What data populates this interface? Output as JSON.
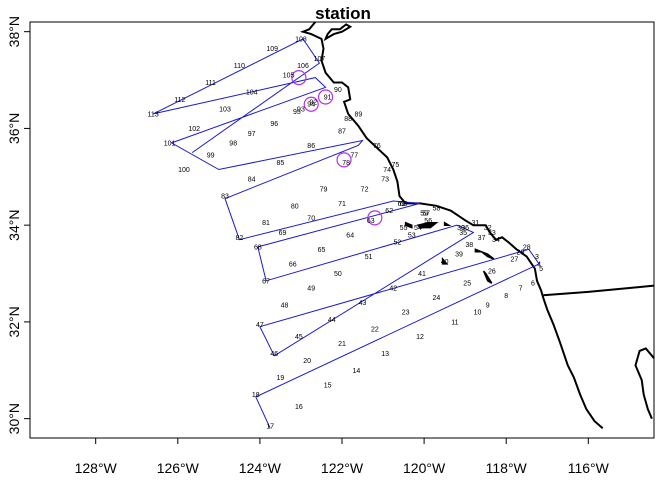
{
  "title": "station",
  "axes": {
    "x_ticks": [
      {
        "lon": -128,
        "label": "128°W"
      },
      {
        "lon": -126,
        "label": "126°W"
      },
      {
        "lon": -124,
        "label": "124°W"
      },
      {
        "lon": -122,
        "label": "122°W"
      },
      {
        "lon": -120,
        "label": "120°W"
      },
      {
        "lon": -118,
        "label": "118°W"
      },
      {
        "lon": -116,
        "label": "116°W"
      }
    ],
    "y_ticks": [
      {
        "lat": 30,
        "label": "30°N"
      },
      {
        "lat": 32,
        "label": "32°N"
      },
      {
        "lat": 34,
        "label": "34°N"
      },
      {
        "lat": 36,
        "label": "36°N"
      },
      {
        "lat": 38,
        "label": "38°N"
      }
    ],
    "xlim": [
      -129.6,
      -114.4
    ],
    "ylim": [
      29.6,
      38.2
    ]
  },
  "colors": {
    "route": "#1a1acd",
    "highlight": "#b333e6",
    "coast": "#000000"
  },
  "route_vertices": [
    {
      "lon": -123.75,
      "lat": 29.8
    },
    {
      "lon": -124.1,
      "lat": 30.45
    },
    {
      "lon": -117.2,
      "lat": 33.2
    },
    {
      "lon": -117.45,
      "lat": 33.5
    },
    {
      "lon": -124.0,
      "lat": 31.9
    },
    {
      "lon": -123.65,
      "lat": 31.3
    },
    {
      "lon": -118.8,
      "lat": 33.85
    },
    {
      "lon": -119.2,
      "lat": 34.0
    },
    {
      "lon": -123.85,
      "lat": 32.85
    },
    {
      "lon": -124.05,
      "lat": 33.55
    },
    {
      "lon": -120.1,
      "lat": 34.45
    },
    {
      "lon": -120.75,
      "lat": 34.5
    },
    {
      "lon": -124.5,
      "lat": 33.7
    },
    {
      "lon": -124.85,
      "lat": 34.55
    },
    {
      "lon": -121.6,
      "lat": 35.65
    },
    {
      "lon": -121.5,
      "lat": 35.75
    },
    {
      "lon": -125.0,
      "lat": 35.15
    },
    {
      "lon": -126.15,
      "lat": 35.7
    },
    {
      "lon": -122.4,
      "lat": 36.85
    },
    {
      "lon": -122.65,
      "lat": 37.05
    },
    {
      "lon": -126.6,
      "lat": 36.3
    },
    {
      "lon": -122.95,
      "lat": 37.85
    },
    {
      "lon": -122.55,
      "lat": 37.35
    },
    {
      "lon": -125.65,
      "lat": 35.5
    }
  ],
  "stations": [
    {
      "id": "17",
      "lon": -123.75,
      "lat": 29.85
    },
    {
      "id": "16",
      "lon": -123.05,
      "lat": 30.25
    },
    {
      "id": "15",
      "lon": -122.35,
      "lat": 30.7
    },
    {
      "id": "14",
      "lon": -121.65,
      "lat": 31.0
    },
    {
      "id": "13",
      "lon": -120.95,
      "lat": 31.35
    },
    {
      "id": "12",
      "lon": -120.1,
      "lat": 31.7
    },
    {
      "id": "11",
      "lon": -119.25,
      "lat": 32.0
    },
    {
      "id": "10",
      "lon": -118.7,
      "lat": 32.2
    },
    {
      "id": "9",
      "lon": -118.45,
      "lat": 32.35
    },
    {
      "id": "8",
      "lon": -118.0,
      "lat": 32.55
    },
    {
      "id": "7",
      "lon": -117.65,
      "lat": 32.7
    },
    {
      "id": "6",
      "lon": -117.35,
      "lat": 32.8
    },
    {
      "id": "5",
      "lon": -117.15,
      "lat": 33.1
    },
    {
      "id": "4",
      "lon": -117.2,
      "lat": 33.2
    },
    {
      "id": "3",
      "lon": -117.25,
      "lat": 33.35
    },
    {
      "id": "18",
      "lon": -124.1,
      "lat": 30.5
    },
    {
      "id": "19",
      "lon": -123.5,
      "lat": 30.85
    },
    {
      "id": "20",
      "lon": -122.85,
      "lat": 31.2
    },
    {
      "id": "21",
      "lon": -122.0,
      "lat": 31.55
    },
    {
      "id": "22",
      "lon": -121.2,
      "lat": 31.85
    },
    {
      "id": "23",
      "lon": -120.45,
      "lat": 32.2
    },
    {
      "id": "24",
      "lon": -119.7,
      "lat": 32.5
    },
    {
      "id": "25",
      "lon": -118.95,
      "lat": 32.8
    },
    {
      "id": "26",
      "lon": -118.35,
      "lat": 33.05
    },
    {
      "id": "27",
      "lon": -117.8,
      "lat": 33.3
    },
    {
      "id": "28",
      "lon": -117.5,
      "lat": 33.55
    },
    {
      "id": "29",
      "lon": -117.65,
      "lat": 33.45
    },
    {
      "id": "46",
      "lon": -123.65,
      "lat": 31.35
    },
    {
      "id": "45",
      "lon": -123.05,
      "lat": 31.7
    },
    {
      "id": "44",
      "lon": -122.25,
      "lat": 32.05
    },
    {
      "id": "43",
      "lon": -121.5,
      "lat": 32.4
    },
    {
      "id": "42",
      "lon": -120.75,
      "lat": 32.7
    },
    {
      "id": "41",
      "lon": -120.05,
      "lat": 33.0
    },
    {
      "id": "40",
      "lon": -119.5,
      "lat": 33.25
    },
    {
      "id": "39",
      "lon": -119.15,
      "lat": 33.4
    },
    {
      "id": "38",
      "lon": -118.9,
      "lat": 33.6
    },
    {
      "id": "37",
      "lon": -118.6,
      "lat": 33.75
    },
    {
      "id": "47",
      "lon": -124.0,
      "lat": 31.95
    },
    {
      "id": "48",
      "lon": -123.4,
      "lat": 32.35
    },
    {
      "id": "49",
      "lon": -122.75,
      "lat": 32.7
    },
    {
      "id": "50",
      "lon": -122.1,
      "lat": 33.0
    },
    {
      "id": "51",
      "lon": -121.35,
      "lat": 33.35
    },
    {
      "id": "52",
      "lon": -120.65,
      "lat": 33.65
    },
    {
      "id": "53",
      "lon": -120.3,
      "lat": 33.8
    },
    {
      "id": "54",
      "lon": -120.15,
      "lat": 33.95
    },
    {
      "id": "55",
      "lon": -120.5,
      "lat": 33.95
    },
    {
      "id": "56",
      "lon": -119.9,
      "lat": 34.1
    },
    {
      "id": "57",
      "lon": -119.95,
      "lat": 34.25
    },
    {
      "id": "58",
      "lon": -119.7,
      "lat": 34.35
    },
    {
      "id": "59",
      "lon": -120.0,
      "lat": 34.25
    },
    {
      "id": "30",
      "lon": -119.1,
      "lat": 33.95
    },
    {
      "id": "31",
      "lon": -118.75,
      "lat": 34.05
    },
    {
      "id": "32",
      "lon": -118.45,
      "lat": 33.95
    },
    {
      "id": "33",
      "lon": -118.35,
      "lat": 33.85
    },
    {
      "id": "34",
      "lon": -118.25,
      "lat": 33.7
    },
    {
      "id": "35",
      "lon": -119.05,
      "lat": 33.85
    },
    {
      "id": "36",
      "lon": -119.0,
      "lat": 33.95
    },
    {
      "id": "67",
      "lon": -123.85,
      "lat": 32.85
    },
    {
      "id": "66",
      "lon": -123.2,
      "lat": 33.2
    },
    {
      "id": "65",
      "lon": -122.5,
      "lat": 33.5
    },
    {
      "id": "64",
      "lon": -121.8,
      "lat": 33.8
    },
    {
      "id": "63",
      "lon": -121.3,
      "lat": 34.1
    },
    {
      "id": "62",
      "lon": -120.85,
      "lat": 34.3
    },
    {
      "id": "61",
      "lon": -120.55,
      "lat": 34.45
    },
    {
      "id": "60",
      "lon": -120.5,
      "lat": 34.45
    },
    {
      "id": "68",
      "lon": -124.05,
      "lat": 33.55
    },
    {
      "id": "69",
      "lon": -123.45,
      "lat": 33.85
    },
    {
      "id": "70",
      "lon": -122.75,
      "lat": 34.15
    },
    {
      "id": "71",
      "lon": -122.0,
      "lat": 34.45
    },
    {
      "id": "72",
      "lon": -121.45,
      "lat": 34.75
    },
    {
      "id": "73",
      "lon": -120.95,
      "lat": 34.95
    },
    {
      "id": "74",
      "lon": -120.9,
      "lat": 35.15
    },
    {
      "id": "75",
      "lon": -120.7,
      "lat": 35.25
    },
    {
      "id": "82",
      "lon": -124.5,
      "lat": 33.75
    },
    {
      "id": "81",
      "lon": -123.85,
      "lat": 34.05
    },
    {
      "id": "80",
      "lon": -123.15,
      "lat": 34.4
    },
    {
      "id": "79",
      "lon": -122.45,
      "lat": 34.75
    },
    {
      "id": "78",
      "lon": -121.9,
      "lat": 35.3
    },
    {
      "id": "77",
      "lon": -121.7,
      "lat": 35.45
    },
    {
      "id": "76",
      "lon": -121.15,
      "lat": 35.65
    },
    {
      "id": "83",
      "lon": -124.85,
      "lat": 34.6
    },
    {
      "id": "84",
      "lon": -124.2,
      "lat": 34.95
    },
    {
      "id": "85",
      "lon": -123.5,
      "lat": 35.3
    },
    {
      "id": "86",
      "lon": -122.75,
      "lat": 35.65
    },
    {
      "id": "87",
      "lon": -122.0,
      "lat": 35.95
    },
    {
      "id": "88",
      "lon": -121.85,
      "lat": 36.2
    },
    {
      "id": "89",
      "lon": -121.6,
      "lat": 36.3
    },
    {
      "id": "100",
      "lon": -125.85,
      "lat": 35.15
    },
    {
      "id": "99",
      "lon": -125.2,
      "lat": 35.45
    },
    {
      "id": "98",
      "lon": -124.65,
      "lat": 35.7
    },
    {
      "id": "97",
      "lon": -124.2,
      "lat": 35.9
    },
    {
      "id": "96",
      "lon": -123.65,
      "lat": 36.1
    },
    {
      "id": "95",
      "lon": -123.1,
      "lat": 36.35
    },
    {
      "id": "94",
      "lon": -122.75,
      "lat": 36.5
    },
    {
      "id": "93",
      "lon": -123.0,
      "lat": 36.4
    },
    {
      "id": "92",
      "lon": -122.7,
      "lat": 36.55
    },
    {
      "id": "91",
      "lon": -122.35,
      "lat": 36.65
    },
    {
      "id": "90",
      "lon": -122.1,
      "lat": 36.8
    },
    {
      "id": "101",
      "lon": -126.2,
      "lat": 35.7
    },
    {
      "id": "102",
      "lon": -125.6,
      "lat": 36.0
    },
    {
      "id": "103",
      "lon": -124.85,
      "lat": 36.4
    },
    {
      "id": "104",
      "lon": -124.2,
      "lat": 36.75
    },
    {
      "id": "105",
      "lon": -123.3,
      "lat": 37.1
    },
    {
      "id": "106",
      "lon": -122.95,
      "lat": 37.3
    },
    {
      "id": "107",
      "lon": -122.55,
      "lat": 37.45
    },
    {
      "id": "108",
      "lon": -123.0,
      "lat": 37.85
    },
    {
      "id": "109",
      "lon": -123.7,
      "lat": 37.65
    },
    {
      "id": "110",
      "lon": -124.5,
      "lat": 37.3
    },
    {
      "id": "111",
      "lon": -125.2,
      "lat": 36.95
    },
    {
      "id": "112",
      "lon": -125.95,
      "lat": 36.6
    },
    {
      "id": "113",
      "lon": -126.6,
      "lat": 36.3
    }
  ],
  "highlight_circles": [
    {
      "lon": -123.05,
      "lat": 37.05
    },
    {
      "lon": -122.75,
      "lat": 36.5
    },
    {
      "lon": -122.4,
      "lat": 36.65
    },
    {
      "lon": -121.95,
      "lat": 35.35
    },
    {
      "lon": -121.2,
      "lat": 34.15
    }
  ],
  "coastline": [
    [
      -122.65,
      38.2
    ],
    [
      -122.8,
      38.05
    ],
    [
      -122.95,
      38.0
    ],
    [
      -122.75,
      37.95
    ],
    [
      -122.5,
      37.85
    ],
    [
      -122.45,
      37.65
    ],
    [
      -122.5,
      37.4
    ],
    [
      -122.4,
      37.15
    ],
    [
      -122.2,
      36.95
    ],
    [
      -122.0,
      36.95
    ],
    [
      -121.85,
      36.85
    ],
    [
      -121.8,
      36.6
    ],
    [
      -121.95,
      36.55
    ],
    [
      -121.85,
      36.3
    ],
    [
      -121.6,
      36.05
    ],
    [
      -121.4,
      35.8
    ],
    [
      -121.15,
      35.6
    ],
    [
      -120.9,
      35.4
    ],
    [
      -120.75,
      35.15
    ],
    [
      -120.65,
      34.9
    ],
    [
      -120.6,
      34.6
    ],
    [
      -120.45,
      34.45
    ],
    [
      -120.1,
      34.45
    ],
    [
      -119.7,
      34.4
    ],
    [
      -119.35,
      34.3
    ],
    [
      -119.0,
      34.1
    ],
    [
      -118.8,
      34.0
    ],
    [
      -118.5,
      34.0
    ],
    [
      -118.4,
      33.85
    ],
    [
      -118.25,
      33.7
    ],
    [
      -118.1,
      33.75
    ],
    [
      -117.95,
      33.65
    ],
    [
      -117.75,
      33.5
    ],
    [
      -117.5,
      33.35
    ],
    [
      -117.3,
      33.1
    ],
    [
      -117.25,
      32.85
    ],
    [
      -117.15,
      32.65
    ],
    [
      -117.1,
      32.5
    ],
    [
      -117.0,
      32.25
    ],
    [
      -116.85,
      31.95
    ],
    [
      -116.7,
      31.6
    ],
    [
      -116.6,
      31.35
    ],
    [
      -116.5,
      31.1
    ],
    [
      -116.35,
      30.85
    ],
    [
      -116.2,
      30.5
    ],
    [
      -116.05,
      30.2
    ],
    [
      -115.85,
      29.95
    ],
    [
      -115.65,
      29.8
    ]
  ],
  "border": [
    [
      -117.1,
      32.55
    ],
    [
      -116.0,
      32.62
    ],
    [
      -115.0,
      32.7
    ],
    [
      -114.4,
      32.75
    ]
  ],
  "inland_shore": [
    [
      -114.4,
      31.25
    ],
    [
      -114.6,
      31.45
    ],
    [
      -114.75,
      31.4
    ],
    [
      -114.85,
      31.1
    ],
    [
      -114.7,
      30.8
    ],
    [
      -114.65,
      30.5
    ],
    [
      -114.55,
      30.2
    ],
    [
      -114.45,
      30.0
    ]
  ],
  "bay": [
    [
      -122.4,
      37.85
    ],
    [
      -122.2,
      37.95
    ],
    [
      -122.0,
      38.0
    ],
    [
      -121.8,
      38.1
    ],
    [
      -121.9,
      38.15
    ],
    [
      -122.05,
      38.05
    ],
    [
      -122.25,
      38.05
    ],
    [
      -122.35,
      37.95
    ]
  ],
  "islands": [
    [
      [
        -120.45,
        34.05
      ],
      [
        -120.3,
        34.0
      ],
      [
        -120.3,
        33.95
      ],
      [
        -120.45,
        34.0
      ]
    ],
    [
      [
        -120.15,
        34.0
      ],
      [
        -119.9,
        34.05
      ],
      [
        -119.7,
        34.05
      ],
      [
        -119.85,
        33.95
      ],
      [
        -120.1,
        33.95
      ]
    ],
    [
      [
        -119.5,
        34.05
      ],
      [
        -119.4,
        34.0
      ],
      [
        -119.5,
        34.0
      ]
    ],
    [
      [
        -118.6,
        33.45
      ],
      [
        -118.45,
        33.4
      ],
      [
        -118.3,
        33.3
      ],
      [
        -118.45,
        33.35
      ]
    ],
    [
      [
        -119.55,
        33.3
      ],
      [
        -119.45,
        33.2
      ],
      [
        -119.55,
        33.2
      ]
    ],
    [
      [
        -118.55,
        33.05
      ],
      [
        -118.45,
        32.85
      ],
      [
        -118.35,
        32.8
      ],
      [
        -118.5,
        33.0
      ]
    ],
    [
      [
        -118.75,
        33.5
      ],
      [
        -118.6,
        33.45
      ],
      [
        -118.75,
        33.45
      ]
    ]
  ]
}
